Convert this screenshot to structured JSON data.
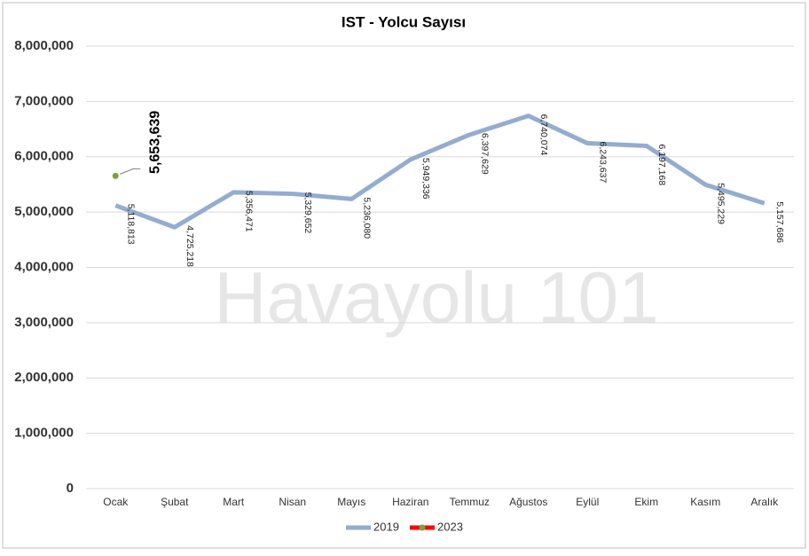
{
  "chart_data": {
    "type": "line",
    "title": "IST - Yolcu Sayısı",
    "categories": [
      "Ocak",
      "Şubat",
      "Mart",
      "Nisan",
      "Mayıs",
      "Haziran",
      "Temmuz",
      "Ağustos",
      "Eylül",
      "Ekim",
      "Kasım",
      "Aralık"
    ],
    "series": [
      {
        "name": "2019",
        "color": "#93acd0",
        "markers": false,
        "values": [
          5118813,
          4725218,
          5356471,
          5329652,
          5236080,
          5949336,
          6397629,
          6740074,
          6243637,
          6197168,
          5495229,
          5157686
        ],
        "value_labels": [
          "5,118,813",
          "4,725,218",
          "5,356,471",
          "5,329,652",
          "5,236,080",
          "5,949,336",
          "6,397,629",
          "6,740,074",
          "6,243,637",
          "6,197,168",
          "5,495,229",
          "5,157,686"
        ]
      },
      {
        "name": "2023",
        "color": "#ff0000",
        "marker_color": "#77a33a",
        "markers": true,
        "values": [
          5653639,
          null,
          null,
          null,
          null,
          null,
          null,
          null,
          null,
          null,
          null,
          null
        ],
        "value_labels": [
          "5,653,639",
          null,
          null,
          null,
          null,
          null,
          null,
          null,
          null,
          null,
          null,
          null
        ]
      }
    ],
    "ylim": [
      0,
      8000000
    ],
    "yticks": [
      0,
      {
        "value": 1000000,
        "label": "1,000,000"
      },
      {
        "value": 2000000,
        "label": "2,000,000"
      },
      {
        "value": 3000000,
        "label": "3,000,000"
      },
      {
        "value": 4000000,
        "label": "4,000,000"
      },
      {
        "value": 5000000,
        "label": "5,000,000"
      },
      {
        "value": 6000000,
        "label": "6,000,000"
      },
      {
        "value": 7000000,
        "label": "7,000,000"
      },
      {
        "value": 8000000,
        "label": "8,000,000"
      }
    ],
    "grid": true,
    "legend": "bottom",
    "annotations": [
      {
        "text": "Havayolu 101"
      }
    ]
  }
}
